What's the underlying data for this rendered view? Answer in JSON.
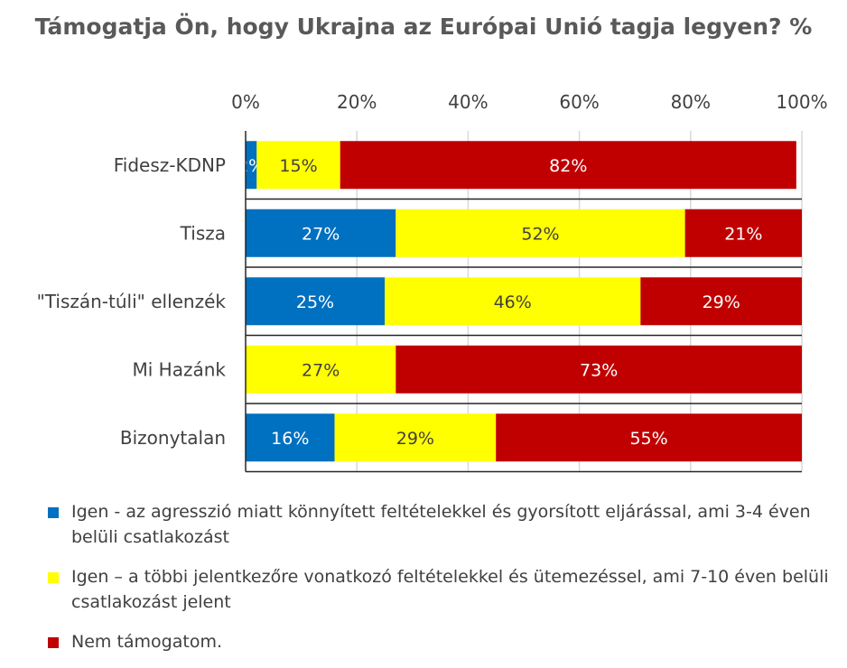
{
  "chart_data": {
    "type": "bar",
    "orientation": "horizontal",
    "stacked": "percent",
    "title": "Támogatja Ön, hogy Ukrajna az Európai Unió tagja legyen? %",
    "categories": [
      "Fidesz-KDNP",
      "Tisza",
      "\"Tiszán-túli\" ellenzék",
      "Mi Hazánk",
      "Bizonytalan"
    ],
    "xlim": [
      0,
      100
    ],
    "xticks": [
      "0%",
      "20%",
      "40%",
      "60%",
      "80%",
      "100%"
    ],
    "grid": true,
    "legend_position": "bottom",
    "series": [
      {
        "name": "Igen - az agresszió miatt könnyített feltételekkel és gyorsított eljárással, ami 3-4 éven belüli csatlakozást",
        "color": "#0070C0",
        "label_color": "#ffffff",
        "values": [
          2,
          27,
          25,
          0,
          16
        ]
      },
      {
        "name": "Igen – a többi jelentkezőre vonatkozó feltételekkel és ütemezéssel, ami 7-10 éven belüli csatlakozást jelent",
        "color": "#FFFF00",
        "label_color": "#404040",
        "values": [
          15,
          52,
          46,
          27,
          29
        ]
      },
      {
        "name": "Nem támogatom.",
        "color": "#C00000",
        "label_color": "#ffffff",
        "values": [
          82,
          21,
          29,
          73,
          55
        ]
      }
    ]
  }
}
